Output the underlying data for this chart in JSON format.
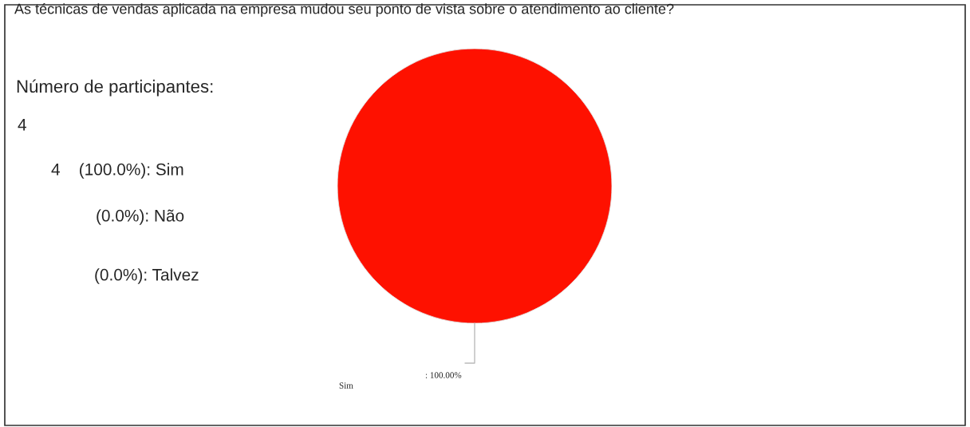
{
  "chart_data": {
    "type": "pie",
    "title": "As técnicas de vendas aplicada na empresa mudou seu ponto de vista sobre o atendimento ao cliente?",
    "categories": [
      "Sim"
    ],
    "values": [
      100
    ],
    "colors": [
      "#fe1100"
    ],
    "value_labels": [
      ": 100.00%"
    ],
    "annotations": [
      "Número de participantes:",
      "4",
      "4    (100.0%): Sim",
      "(0.0%): Não",
      "(0.0%): Talvez"
    ]
  }
}
